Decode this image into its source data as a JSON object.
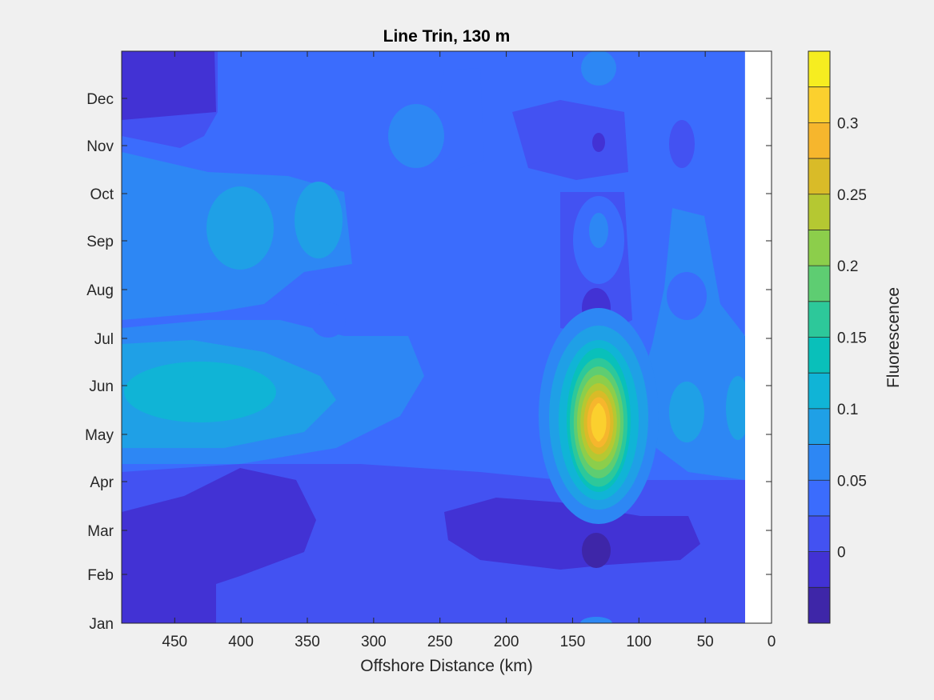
{
  "chart_data": {
    "type": "heatmap",
    "subtype": "filled-contour",
    "title": "Line Trin, 130 m",
    "xlabel": "Offshore Distance (km)",
    "xlim": [
      0,
      490
    ],
    "x_reversed": true,
    "x_ticks": [
      450,
      400,
      350,
      300,
      250,
      200,
      150,
      100,
      50,
      0
    ],
    "x_data_extent": [
      20,
      490
    ],
    "y_ticks": [
      "Jan",
      "Feb",
      "Mar",
      "Apr",
      "May",
      "Jun",
      "Jul",
      "Aug",
      "Sep",
      "Oct",
      "Nov",
      "Dec"
    ],
    "colorbar": {
      "label": "Fluorescence",
      "range": [
        -0.05,
        0.35
      ],
      "tick_values": [
        0,
        0.05,
        0.1,
        0.15,
        0.2,
        0.25,
        0.3
      ],
      "tick_labels": [
        "0",
        "0.05",
        "0.1",
        "0.15",
        "0.2",
        "0.25",
        "0.3"
      ],
      "levels": 16,
      "colormap": [
        "#3e26a8",
        "#4232d4",
        "#4352f2",
        "#3b6cfd",
        "#2d87f4",
        "#1fa0e6",
        "#10b4d6",
        "#09c0ba",
        "#2dc89a",
        "#5ecd72",
        "#8cce4b",
        "#b5c832",
        "#d9bb28",
        "#f6b62d",
        "#fbd02e",
        "#f6ed20"
      ]
    },
    "grid": false
  }
}
